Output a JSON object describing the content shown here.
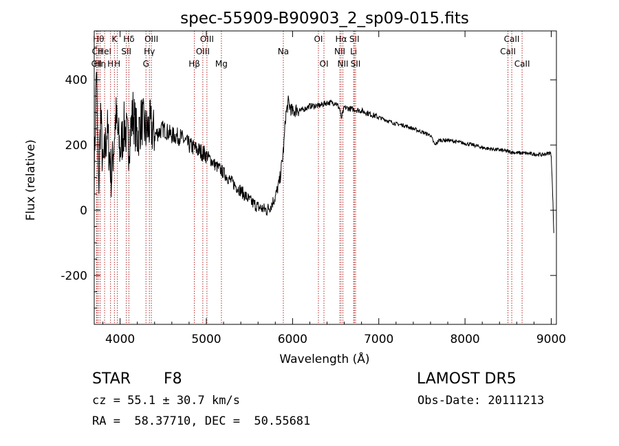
{
  "chart_data": {
    "type": "line",
    "title": "spec-55909-B90903_2_sp09-015.fits",
    "xlabel": "Wavelength (Å)",
    "ylabel": "Flux (relative)",
    "xlim": [
      3700,
      9060
    ],
    "ylim": [
      -350,
      550
    ],
    "x_ticks": [
      4000,
      5000,
      6000,
      7000,
      8000,
      9000
    ],
    "y_ticks": [
      -200,
      0,
      200,
      400
    ],
    "grid": false,
    "legend": "none",
    "line_color": "#000000",
    "marker_color": "#b22222",
    "series": [
      {
        "x": [
          3700,
          3725,
          3750,
          3775,
          3800,
          3850,
          3900,
          3950,
          4000,
          4050,
          4100,
          4150,
          4200,
          4250,
          4300,
          4350,
          4400,
          4500,
          4600,
          4700,
          4800,
          4900,
          5000,
          5100,
          5200,
          5300,
          5400,
          5500,
          5600,
          5650,
          5700,
          5750,
          5800,
          5850,
          5880,
          5900,
          5920,
          5950,
          6000,
          6050,
          6100,
          6200,
          6300,
          6400,
          6500,
          6550,
          6563,
          6600,
          6700,
          6800,
          6900,
          7000,
          7100,
          7200,
          7300,
          7400,
          7500,
          7600,
          7650,
          7700,
          7800,
          7900,
          8000,
          8100,
          8200,
          8300,
          8400,
          8500,
          8600,
          8700,
          8800,
          8900,
          8950,
          8990,
          9000,
          9010,
          9020,
          9030
        ],
        "y": [
          100,
          450,
          50,
          300,
          120,
          250,
          100,
          290,
          180,
          260,
          200,
          300,
          220,
          280,
          240,
          260,
          230,
          250,
          230,
          225,
          200,
          185,
          170,
          140,
          115,
          85,
          60,
          30,
          10,
          5,
          0,
          15,
          40,
          90,
          150,
          200,
          290,
          330,
          300,
          310,
          305,
          320,
          320,
          330,
          330,
          310,
          280,
          315,
          310,
          305,
          295,
          285,
          275,
          265,
          260,
          250,
          240,
          230,
          200,
          215,
          215,
          210,
          205,
          200,
          192,
          188,
          185,
          180,
          176,
          175,
          172,
          170,
          174,
          176,
          168,
          100,
          20,
          -70
        ]
      }
    ],
    "line_markers": [
      {
        "x": 3750,
        "label": "Hθ",
        "row": 0
      },
      {
        "x": 3734,
        "label": "CII",
        "row": 1
      },
      {
        "x": 3727,
        "label": "CII",
        "row": 2
      },
      {
        "x": 3770,
        "label": "Hη",
        "row": 2
      },
      {
        "x": 3820,
        "label": "HeI",
        "row": 1
      },
      {
        "x": 3889,
        "label": "H",
        "row": 2
      },
      {
        "x": 3934,
        "label": "K",
        "row": 0
      },
      {
        "x": 3968,
        "label": "H",
        "row": 2
      },
      {
        "x": 4072,
        "label": "SII",
        "row": 1
      },
      {
        "x": 4102,
        "label": "Hδ",
        "row": 0
      },
      {
        "x": 4300,
        "label": "G",
        "row": 2
      },
      {
        "x": 4340,
        "label": "Hγ",
        "row": 1
      },
      {
        "x": 4363,
        "label": "OIII",
        "row": 0
      },
      {
        "x": 4861,
        "label": "Hβ",
        "row": 2
      },
      {
        "x": 4959,
        "label": "OIII",
        "row": 1
      },
      {
        "x": 5007,
        "label": "OIII",
        "row": 0
      },
      {
        "x": 5175,
        "label": "Mg",
        "row": 2
      },
      {
        "x": 5893,
        "label": "Na",
        "row": 1
      },
      {
        "x": 6300,
        "label": "OI",
        "row": 0
      },
      {
        "x": 6364,
        "label": "OI",
        "row": 2
      },
      {
        "x": 6548,
        "label": "NII",
        "row": 1
      },
      {
        "x": 6563,
        "label": "Hα",
        "row": 0
      },
      {
        "x": 6584,
        "label": "NII",
        "row": 2
      },
      {
        "x": 6708,
        "label": "Li",
        "row": 1
      },
      {
        "x": 6717,
        "label": "SII",
        "row": 0
      },
      {
        "x": 6731,
        "label": "SII",
        "row": 2
      },
      {
        "x": 8498,
        "label": "CaII",
        "row": 1
      },
      {
        "x": 8542,
        "label": "CaII",
        "row": 0
      },
      {
        "x": 8662,
        "label": "CaII",
        "row": 2
      }
    ]
  },
  "footer": {
    "object_class": "STAR",
    "subclass": "F8",
    "survey": "LAMOST DR5",
    "redshift": "cz = 55.1 ± 30.7 km/s",
    "obs_date": "Obs-Date: 20111213",
    "coords": "RA =  58.37710, DEC =  50.55681"
  }
}
